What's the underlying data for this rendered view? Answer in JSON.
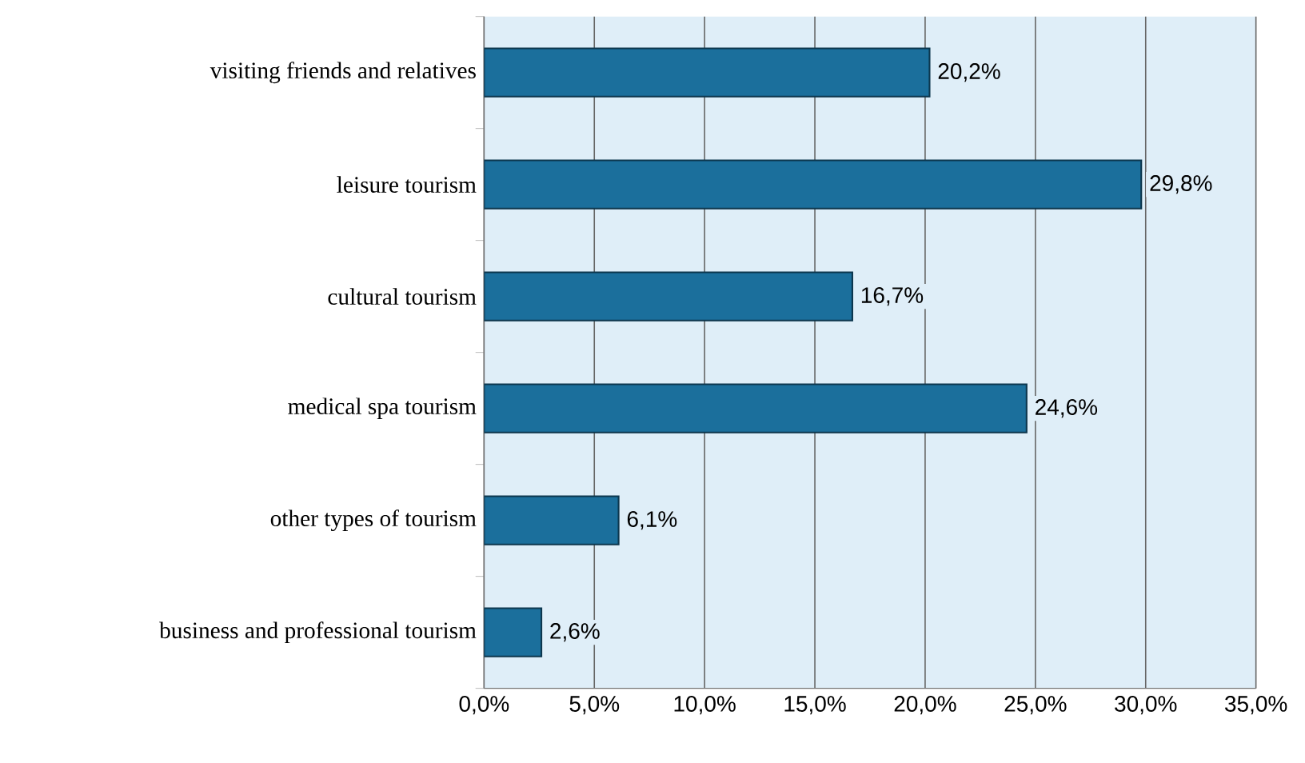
{
  "chart_data": {
    "type": "bar",
    "orientation": "horizontal",
    "categories": [
      "visiting friends and relatives",
      "leisure tourism",
      "cultural tourism",
      "medical spa tourism",
      "other types of tourism",
      "business and professional tourism"
    ],
    "values": [
      20.2,
      29.8,
      16.7,
      24.6,
      6.1,
      2.6
    ],
    "value_labels": [
      "20,2%",
      "29,8%",
      "16,7%",
      "24,6%",
      "6,1%",
      "2,6%"
    ],
    "color": "#1b6f9c",
    "xlim": [
      0,
      35
    ],
    "xticks": [
      {
        "value": 0,
        "label": "0,0%"
      },
      {
        "value": 5,
        "label": "5,0%"
      },
      {
        "value": 10,
        "label": "10,0%"
      },
      {
        "value": 15,
        "label": "15,0%"
      },
      {
        "value": 20,
        "label": "20,0%"
      },
      {
        "value": 25,
        "label": "25,0%"
      },
      {
        "value": 30,
        "label": "30,0%"
      },
      {
        "value": 35,
        "label": "35,0%"
      }
    ],
    "grid": "x"
  }
}
